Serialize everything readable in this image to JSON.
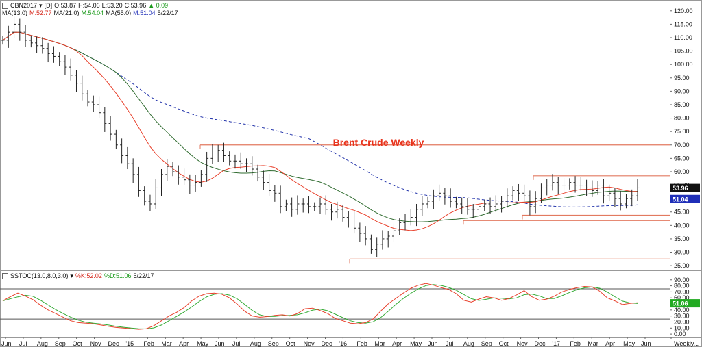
{
  "header": {
    "symbol": "CBN2017",
    "interval": "[D]",
    "open": "O:53.87",
    "high": "H:54.06",
    "low": "L:53.20",
    "close": "C:53.96",
    "change": "▲ 0.09",
    "ma_line": {
      "ma13": "MA(13.0)",
      "ma13_val": "M:52.77",
      "ma21": "MA(21.0)",
      "ma21_val": "M:54.04",
      "ma55": "MA(55.0)",
      "ma55_val": "M:51.04",
      "date": "5/22/17"
    }
  },
  "indicator": {
    "name": "SSTOC(13.0,8.0,3.0)",
    "k": "%K:52.02",
    "d": "%D:51.06",
    "date": "5/22/17"
  },
  "colors": {
    "price": "#222222",
    "ma13": "#e8402b",
    "ma21": "#2f6b2f",
    "ma55": "#2233aa",
    "level": "#e27a60",
    "title": "#e8321b",
    "k": "#e8402b",
    "d": "#33aa33",
    "axis_label_bg_price": "#111111",
    "axis_label_bg_ma55": "#1f2fb8",
    "axis_label_bg_d": "#22aa22"
  },
  "chart_data": [
    {
      "type": "line",
      "title": "Brent Crude Weekly",
      "instrument": "CBN2017",
      "x_unit": "weeks",
      "x_ticks": [
        "Jun",
        "Jul",
        "Aug",
        "Sep",
        "Oct",
        "Nov",
        "Dec",
        "'15",
        "Feb",
        "Mar",
        "Apr",
        "May",
        "Jun",
        "Jul",
        "Aug",
        "Sep",
        "Oct",
        "Nov",
        "Dec",
        "'16",
        "Feb",
        "Mar",
        "Apr",
        "May",
        "Jun",
        "Jul",
        "Aug",
        "Sep",
        "Oct",
        "Nov",
        "Dec",
        "'17",
        "Feb",
        "Mar",
        "Apr",
        "May",
        "Jun",
        "Weekly..."
      ],
      "y_ticks": [
        25,
        30,
        35,
        40,
        45,
        50,
        55,
        60,
        65,
        70,
        75,
        80,
        85,
        90,
        95,
        100,
        105,
        110,
        115,
        120
      ],
      "ylim": [
        23.5,
        122.5
      ],
      "right_axis_labels": {
        "last_price": "53.96",
        "ma55": "51.04"
      },
      "levels": [
        70.0,
        58.5,
        43.8,
        41.8,
        27.5
      ],
      "series": [
        {
          "name": "MA(13.0)",
          "role": "ma13",
          "style": "solid"
        },
        {
          "name": "MA(21.0)",
          "role": "ma21",
          "style": "solid"
        },
        {
          "name": "MA(55.0)",
          "role": "ma55",
          "style": "dashed"
        }
      ],
      "close": [
        109,
        112,
        115,
        112,
        109,
        108,
        107,
        106,
        104,
        103,
        101,
        99,
        96,
        93,
        89,
        86,
        85,
        82,
        78,
        74,
        70,
        66,
        63,
        59,
        53,
        49,
        48,
        54,
        59,
        62,
        60,
        58,
        57,
        55,
        56,
        59,
        65,
        67,
        68,
        66,
        64,
        64,
        63,
        63,
        61,
        58,
        56,
        53,
        52,
        47,
        48,
        46,
        48,
        48,
        47,
        47,
        48,
        46,
        45,
        46,
        43,
        42,
        39,
        37,
        35,
        31,
        33,
        35,
        36,
        38,
        41,
        42,
        43,
        46,
        48,
        49,
        51,
        52,
        51,
        49,
        48,
        47,
        46,
        46,
        47,
        48,
        47,
        48,
        49,
        51,
        53,
        52,
        51,
        47,
        50,
        54,
        55,
        56,
        55,
        55,
        56,
        55,
        55,
        54,
        53,
        55,
        51,
        52,
        50,
        48,
        50,
        51,
        54
      ]
    },
    {
      "type": "line",
      "title": "",
      "y_ticks": [
        0,
        10,
        20,
        30,
        40,
        50,
        60,
        70,
        80,
        90
      ],
      "ylim": [
        -1,
        92
      ],
      "levels": [
        75,
        25
      ],
      "right_axis_labels": {
        "d": "51.06"
      },
      "series": [
        {
          "name": "%K",
          "role": "k"
        },
        {
          "name": "%D",
          "role": "d"
        }
      ],
      "k": [
        55,
        62,
        68,
        63,
        57,
        48,
        40,
        34,
        28,
        22,
        19,
        18,
        17,
        15,
        13,
        11,
        10,
        9,
        8,
        9,
        14,
        22,
        30,
        36,
        44,
        55,
        63,
        67,
        68,
        66,
        60,
        50,
        38,
        30,
        28,
        29,
        31,
        32,
        30,
        34,
        42,
        43,
        39,
        34,
        26,
        22,
        18,
        17,
        19,
        25,
        38,
        50,
        59,
        68,
        76,
        81,
        84,
        81,
        77,
        74,
        67,
        56,
        53,
        58,
        62,
        60,
        56,
        59,
        65,
        72,
        62,
        56,
        58,
        63,
        70,
        74,
        77,
        79,
        78,
        71,
        60,
        55,
        49,
        51,
        52
      ]
    }
  ]
}
